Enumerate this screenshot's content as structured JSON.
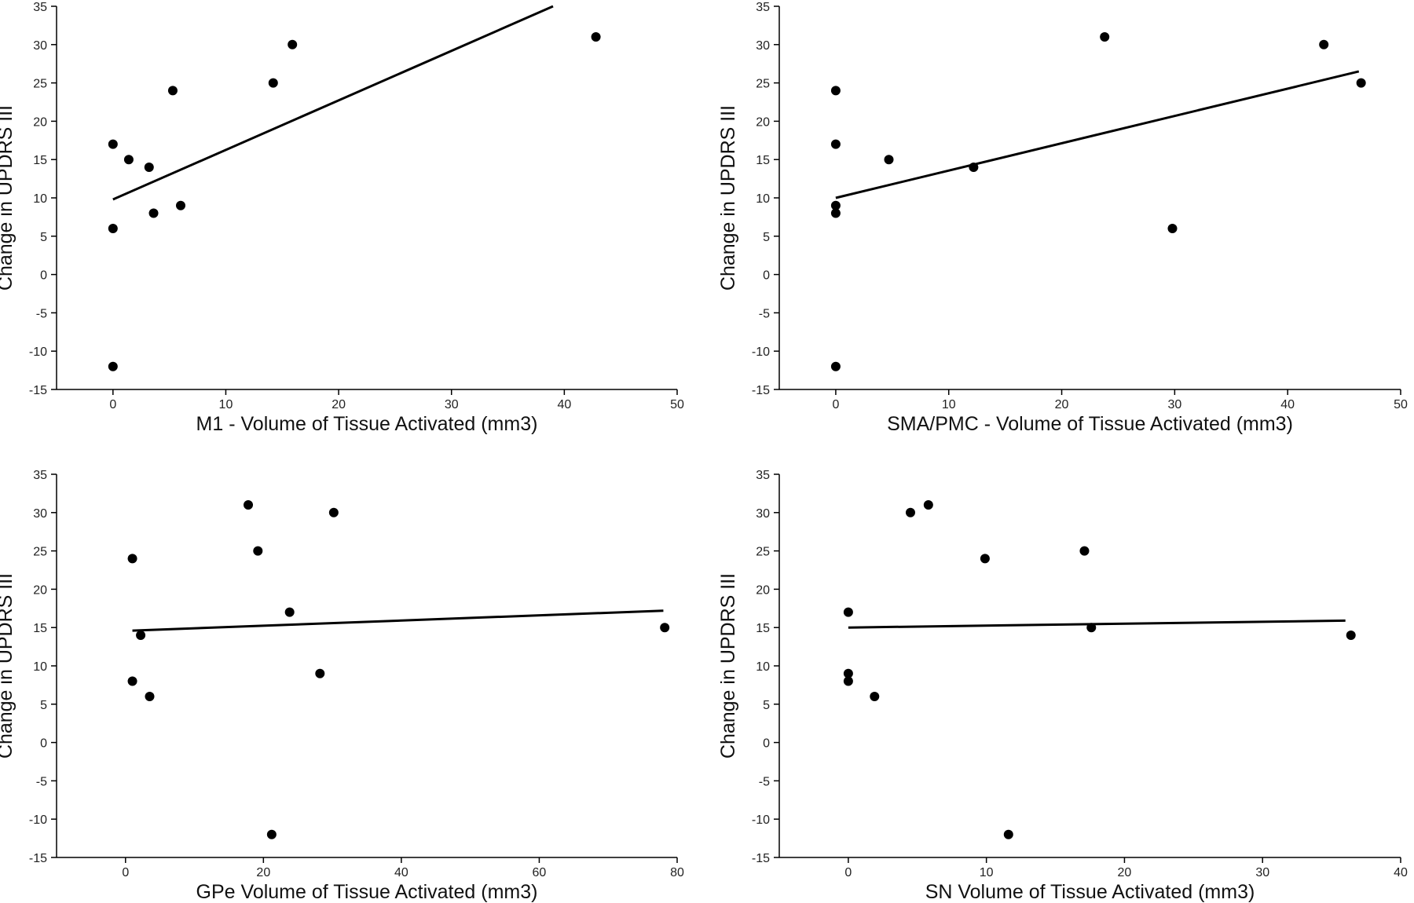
{
  "chart_data": [
    {
      "type": "scatter",
      "xlabel": "M1 - Volume of Tissue Activated (mm3)",
      "ylabel": "Change in UPDRS III",
      "xlim": [
        -5,
        50
      ],
      "ylim": [
        -15,
        35
      ],
      "xticks": [
        0,
        10,
        20,
        30,
        40,
        50
      ],
      "yticks": [
        -15,
        -10,
        -5,
        0,
        5,
        10,
        15,
        20,
        25,
        30,
        35
      ],
      "points": [
        {
          "x": 0,
          "y": 17
        },
        {
          "x": 0,
          "y": 6
        },
        {
          "x": 0,
          "y": -12
        },
        {
          "x": 1.4,
          "y": 15
        },
        {
          "x": 3.2,
          "y": 14
        },
        {
          "x": 3.6,
          "y": 8
        },
        {
          "x": 5.3,
          "y": 24
        },
        {
          "x": 6,
          "y": 9
        },
        {
          "x": 14.2,
          "y": 25
        },
        {
          "x": 15.9,
          "y": 30
        },
        {
          "x": 42.8,
          "y": 31
        }
      ],
      "trend": {
        "x": [
          0,
          39
        ],
        "y": [
          9.8,
          35
        ]
      }
    },
    {
      "type": "scatter",
      "xlabel": "SMA/PMC - Volume of Tissue Activated (mm3)",
      "ylabel": "Change in UPDRS III",
      "xlim": [
        -5,
        50
      ],
      "ylim": [
        -15,
        35
      ],
      "xticks": [
        0,
        10,
        20,
        30,
        40,
        50
      ],
      "yticks": [
        -15,
        -10,
        -5,
        0,
        5,
        10,
        15,
        20,
        25,
        30,
        35
      ],
      "points": [
        {
          "x": 0,
          "y": 24
        },
        {
          "x": 0,
          "y": 17
        },
        {
          "x": 0,
          "y": 9
        },
        {
          "x": 0,
          "y": 8
        },
        {
          "x": 0,
          "y": -12
        },
        {
          "x": 4.7,
          "y": 15
        },
        {
          "x": 12.2,
          "y": 14
        },
        {
          "x": 23.8,
          "y": 31
        },
        {
          "x": 29.8,
          "y": 6
        },
        {
          "x": 43.2,
          "y": 30
        },
        {
          "x": 46.5,
          "y": 25
        }
      ],
      "trend": {
        "x": [
          0,
          46.3
        ],
        "y": [
          10,
          26.5
        ]
      }
    },
    {
      "type": "scatter",
      "xlabel": "GPe Volume of Tissue Activated (mm3)",
      "ylabel": "Change in UPDRS III",
      "xlim": [
        -10,
        80
      ],
      "ylim": [
        -15,
        35
      ],
      "xticks": [
        0,
        20,
        40,
        60,
        80
      ],
      "yticks": [
        -15,
        -10,
        -5,
        0,
        5,
        10,
        15,
        20,
        25,
        30,
        35
      ],
      "points": [
        {
          "x": 1,
          "y": 24
        },
        {
          "x": 1,
          "y": 8
        },
        {
          "x": 2.2,
          "y": 14
        },
        {
          "x": 3.5,
          "y": 6
        },
        {
          "x": 17.8,
          "y": 31
        },
        {
          "x": 19.2,
          "y": 25
        },
        {
          "x": 21.2,
          "y": -12
        },
        {
          "x": 23.8,
          "y": 17
        },
        {
          "x": 28.2,
          "y": 9
        },
        {
          "x": 30.2,
          "y": 30
        },
        {
          "x": 78.2,
          "y": 15
        }
      ],
      "trend": {
        "x": [
          1,
          78
        ],
        "y": [
          14.6,
          17.2
        ]
      }
    },
    {
      "type": "scatter",
      "xlabel": "SN Volume of Tissue Activated (mm3)",
      "ylabel": "Change in UPDRS III",
      "xlim": [
        -5,
        40
      ],
      "ylim": [
        -15,
        35
      ],
      "xticks": [
        0,
        10,
        20,
        30,
        40
      ],
      "yticks": [
        -15,
        -10,
        -5,
        0,
        5,
        10,
        15,
        20,
        25,
        30,
        35
      ],
      "points": [
        {
          "x": 0,
          "y": 17
        },
        {
          "x": 0,
          "y": 9
        },
        {
          "x": 0,
          "y": 8
        },
        {
          "x": 1.9,
          "y": 6
        },
        {
          "x": 4.5,
          "y": 30
        },
        {
          "x": 5.8,
          "y": 31
        },
        {
          "x": 9.9,
          "y": 24
        },
        {
          "x": 11.6,
          "y": -12
        },
        {
          "x": 17.1,
          "y": 25
        },
        {
          "x": 17.6,
          "y": 15
        },
        {
          "x": 36.4,
          "y": 14
        }
      ],
      "trend": {
        "x": [
          0,
          36
        ],
        "y": [
          15,
          15.9
        ]
      }
    }
  ]
}
